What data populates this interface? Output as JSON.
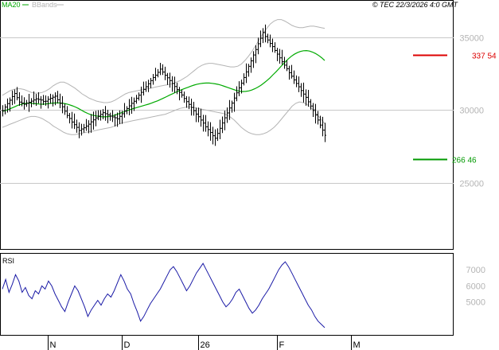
{
  "header": {
    "legend_ma": "MA20",
    "legend_bb": "BBands",
    "copyright": "© TEC 22/3/2026 4:0 GMT"
  },
  "colors": {
    "price": "#000000",
    "ma": "#00aa00",
    "bbands": "#b4b4b4",
    "rsi": "#1a1aa6",
    "resistance": "#dd0000",
    "support": "#009900",
    "grid": "#c8c8c8"
  },
  "chart_data": [
    {
      "type": "ohlc",
      "name": "price-panel",
      "ylim": [
        20500,
        37000
      ],
      "y_ticks": [
        {
          "value": 35000,
          "label": "35000"
        },
        {
          "value": 30000,
          "label": "30000"
        },
        {
          "value": 25000,
          "label": "25000"
        }
      ],
      "x_ticks": [
        {
          "index": 19,
          "label": "N"
        },
        {
          "index": 50,
          "label": "D"
        },
        {
          "index": 82,
          "label": "26"
        },
        {
          "index": 115,
          "label": "F"
        },
        {
          "index": 146,
          "label": "M"
        }
      ],
      "bars": 169,
      "close": [
        29951,
        30191,
        30432,
        30665,
        30912,
        31123,
        30837,
        30536,
        30466,
        30387,
        30453,
        30524,
        30602,
        30680,
        30757,
        30716,
        30677,
        30587,
        30595,
        30722,
        30797,
        30872,
        30942,
        30694,
        30450,
        30212,
        29908,
        29616,
        29409,
        29166,
        28982,
        28799,
        28584,
        28689,
        28770,
        28888,
        29017,
        29178,
        29314,
        29448,
        29573,
        29686,
        29806,
        29734,
        29656,
        29569,
        29514,
        29457,
        29382,
        29554,
        29735,
        29916,
        30094,
        30275,
        30449,
        30593,
        30802,
        31009,
        31207,
        31411,
        31589,
        31792,
        32011,
        32215,
        32385,
        32578,
        32799,
        32596,
        32380,
        32203,
        32013,
        31810,
        31603,
        31391,
        31201,
        31022,
        30780,
        30566,
        30376,
        30167,
        29945,
        29712,
        29527,
        29300,
        29093,
        28837,
        28646,
        28444,
        28223,
        28053,
        28383,
        28734,
        29099,
        29455,
        29788,
        30128,
        30465,
        30813,
        31171,
        31512,
        31837,
        32224,
        32608,
        32993,
        33365,
        33771,
        34145,
        34541,
        34924,
        35310,
        35044,
        34802,
        34564,
        34345,
        34081,
        33829,
        33572,
        33305,
        33072,
        32828,
        32552,
        32311,
        32060,
        31812,
        31586,
        31325,
        31085,
        30861,
        30552,
        30264,
        29993,
        29651,
        29303,
        28957,
        28609,
        28255
      ],
      "ma20": [
        29900,
        29960,
        30030,
        30120,
        30210,
        30300,
        30370,
        30430,
        30460,
        30470,
        30440,
        30420,
        30400,
        30390,
        30400,
        30420,
        30450,
        30470,
        30480,
        30470,
        30450,
        30410,
        30350,
        30280,
        30200,
        30100,
        29980,
        29860,
        29760,
        29680,
        29620,
        29580,
        29540,
        29520,
        29520,
        29540,
        29580,
        29640,
        29710,
        29790,
        29870,
        29950,
        30020,
        30090,
        30150,
        30210,
        30270,
        30330,
        30390,
        30460,
        30540,
        30620,
        30710,
        30810,
        30910,
        31010,
        31110,
        31210,
        31300,
        31390,
        31470,
        31550,
        31630,
        31700,
        31760,
        31800,
        31830,
        31840,
        31840,
        31820,
        31790,
        31750,
        31690,
        31620,
        31550,
        31470,
        31400,
        31330,
        31280,
        31260,
        31270,
        31300,
        31360,
        31450,
        31560,
        31690,
        31840,
        32010,
        32200,
        32410,
        32620,
        32840,
        33070,
        33290,
        33500,
        33680,
        33820,
        33930,
        34010,
        34060,
        34070,
        34040,
        33970,
        33870,
        33740,
        33580,
        33390
      ],
      "bb_upper": [
        31000,
        31150,
        31300,
        31400,
        31450,
        31450,
        31400,
        31300,
        31200,
        31150,
        31150,
        31200,
        31300,
        31450,
        31650,
        31800,
        31900,
        31900,
        31800,
        31650,
        31500,
        31300,
        31100,
        30950,
        30800,
        30700,
        30600,
        30550,
        30500,
        30500,
        30550,
        30650,
        30800,
        30950,
        31100,
        31200,
        31250,
        31300,
        31350,
        31400,
        31450,
        31500,
        31550,
        31600,
        31650,
        31700,
        31750,
        31800,
        31900,
        32000,
        32150,
        32300,
        32500,
        32700,
        32900,
        33050,
        33150,
        33200,
        33200,
        33150,
        33100,
        33050,
        33000,
        32950,
        32950,
        33000,
        33150,
        33400,
        33700,
        34050,
        34450,
        34850,
        35250,
        35600,
        35900,
        36100,
        36200,
        36200,
        36100,
        35950,
        35800,
        35700,
        35650,
        35650,
        35700,
        35750,
        35750,
        35700,
        35650,
        35600
      ],
      "bb_lower": [
        28800,
        28900,
        29000,
        29100,
        29200,
        29300,
        29400,
        29500,
        29550,
        29550,
        29500,
        29400,
        29250,
        29100,
        28900,
        28750,
        28600,
        28450,
        28350,
        28300,
        28300,
        28350,
        28400,
        28450,
        28500,
        28550,
        28600,
        28650,
        28700,
        28750,
        28800,
        28900,
        29000,
        29100,
        29150,
        29200,
        29250,
        29300,
        29350,
        29400,
        29450,
        29500,
        29550,
        29600,
        29650,
        29700,
        29800,
        29900,
        30000,
        30100,
        30150,
        30200,
        30200,
        30150,
        30100,
        30050,
        30000,
        29950,
        29900,
        29850,
        29800,
        29750,
        29650,
        29500,
        29300,
        29050,
        28800,
        28600,
        28450,
        28350,
        28300,
        28300,
        28350,
        28450,
        28600,
        28800,
        29050,
        29350,
        29650,
        29950,
        30250,
        30450,
        30550,
        30500,
        30400,
        30200,
        29950,
        29650,
        29350,
        29050
      ],
      "levels": [
        {
          "value": 33754,
          "label": "337 54",
          "kind": "resistance"
        },
        {
          "value": 26646,
          "label": "266 46",
          "kind": "support"
        }
      ]
    },
    {
      "type": "line",
      "name": "rsi-panel",
      "title": "RSI",
      "ylim": [
        30,
        80
      ],
      "y_ticks": [
        {
          "value": 70,
          "label": "7000"
        },
        {
          "value": 60,
          "label": "6000"
        },
        {
          "value": 50,
          "label": "5000"
        }
      ],
      "values": [
        58,
        64,
        56,
        61,
        67,
        63,
        56,
        59,
        54,
        52,
        57,
        55,
        60,
        58,
        63,
        60,
        55,
        51,
        47,
        44,
        50,
        55,
        60,
        57,
        52,
        47,
        41,
        45,
        48,
        51,
        48,
        52,
        55,
        53,
        57,
        62,
        67,
        63,
        58,
        55,
        49,
        44,
        38,
        41,
        45,
        49,
        52,
        55,
        58,
        62,
        66,
        70,
        72,
        69,
        65,
        61,
        57,
        60,
        64,
        68,
        71,
        74,
        70,
        66,
        62,
        58,
        54,
        50,
        47,
        49,
        52,
        56,
        58,
        54,
        50,
        46,
        43,
        45,
        48,
        52,
        55,
        58,
        62,
        66,
        70,
        73,
        75,
        72,
        68,
        64,
        60,
        56,
        52,
        48,
        45,
        41,
        38,
        36,
        34
      ]
    }
  ]
}
